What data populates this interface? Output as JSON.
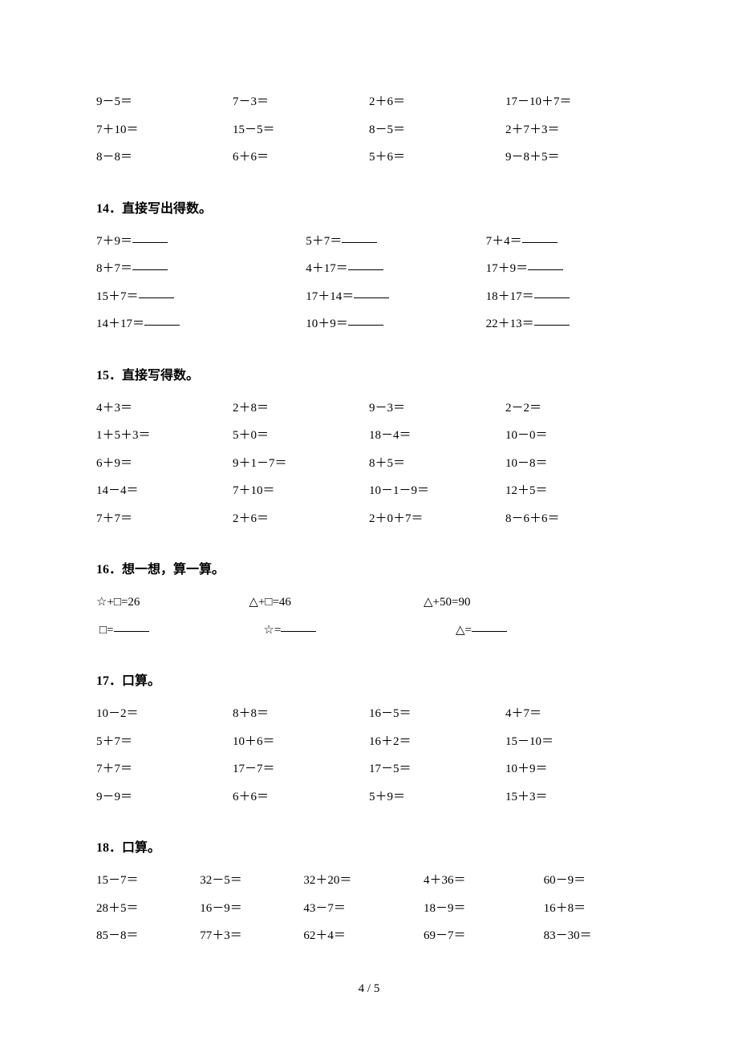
{
  "top_rows": [
    [
      "9－5＝",
      "7－3＝",
      "2＋6＝",
      "17－10＋7＝"
    ],
    [
      "7＋10＝",
      "15－5＝",
      "8－5＝",
      "2＋7＋3＝"
    ],
    [
      "8－8＝",
      "6＋6＝",
      "5＋6＝",
      "9－8＋5＝"
    ]
  ],
  "s14": {
    "heading": "14．直接写出得数。",
    "rows": [
      [
        "7＋9＝",
        "5＋7＝",
        "7＋4＝"
      ],
      [
        "8＋7＝",
        "4＋17＝",
        "17＋9＝"
      ],
      [
        "15＋7＝",
        "17＋14＝",
        "18＋17＝"
      ],
      [
        "14＋17＝",
        "10＋9＝",
        "22＋13＝"
      ]
    ]
  },
  "s15": {
    "heading": "15．直接写得数。",
    "rows": [
      [
        "4＋3＝",
        "2＋8＝",
        "9－3＝",
        "2－2＝"
      ],
      [
        "1＋5＋3＝",
        "5＋0＝",
        "18－4＝",
        "10－0＝"
      ],
      [
        "6＋9＝",
        "9＋1－7＝",
        "8＋5＝",
        "10－8＝"
      ],
      [
        "14－4＝",
        "7＋10＝",
        "10－1－9＝",
        "12＋5＝"
      ],
      [
        "7＋7＝",
        "2＋6＝",
        "2＋0＋7＝",
        "8－6＋6＝"
      ]
    ]
  },
  "s16": {
    "heading": "16．想一想，算一算。",
    "row1": [
      "☆+□=26",
      "△+□=46",
      "△+50=90"
    ],
    "row2": [
      "□=",
      "☆=",
      "△="
    ]
  },
  "s17": {
    "heading": "17．口算。",
    "rows": [
      [
        "10－2＝",
        "8＋8＝",
        "16－5＝",
        "4＋7＝"
      ],
      [
        "5＋7＝",
        "10＋6＝",
        "16＋2＝",
        "15－10＝"
      ],
      [
        "7＋7＝",
        "17－7＝",
        "17－5＝",
        "10＋9＝"
      ],
      [
        "9－9＝",
        "6＋6＝",
        "5＋9＝",
        "15＋3＝"
      ]
    ]
  },
  "s18": {
    "heading": "18．口算。",
    "rows": [
      [
        "15－7＝",
        "32－5＝",
        "32＋20＝",
        "4＋36＝",
        "60－9＝"
      ],
      [
        "28＋5＝",
        "16－9＝",
        "43－7＝",
        "18－9＝",
        "16＋8＝"
      ],
      [
        "85－8＝",
        "77＋3＝",
        "62＋4＝",
        "69－7＝",
        "83－30＝"
      ]
    ]
  },
  "footer": "4 / 5"
}
